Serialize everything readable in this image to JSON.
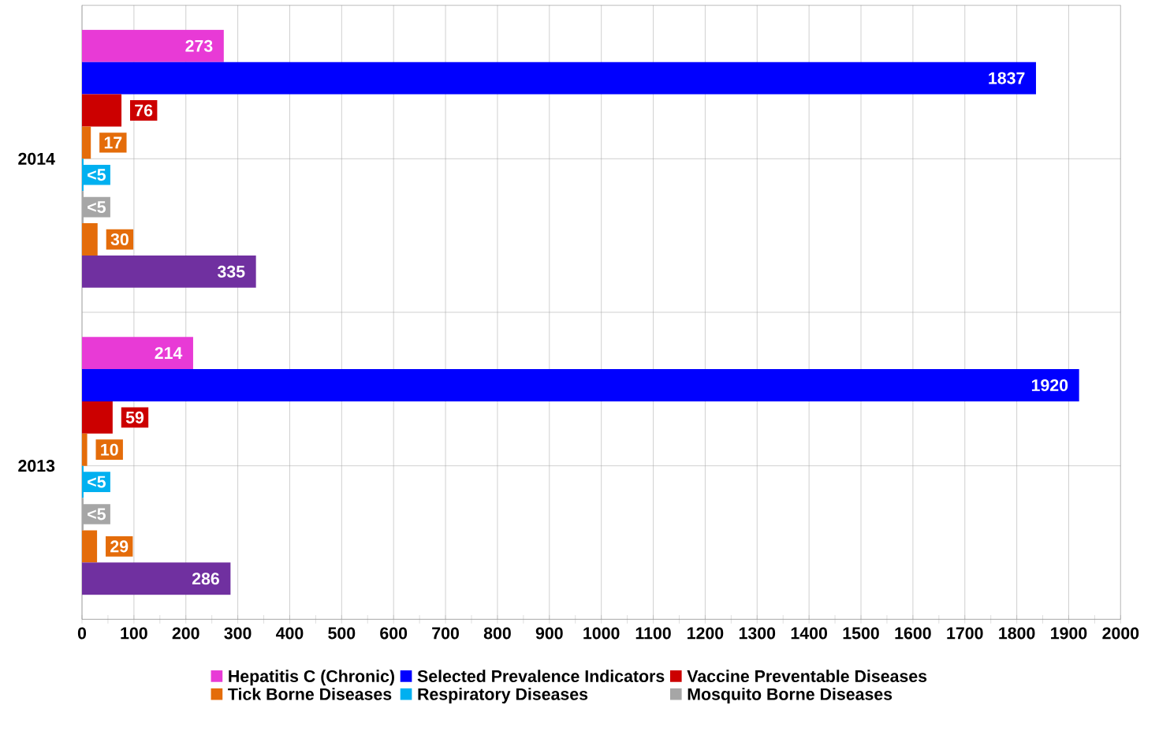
{
  "chart_data": {
    "type": "bar",
    "orientation": "horizontal",
    "categories": [
      "2014",
      "2013"
    ],
    "series": [
      {
        "name": "Hepatitis C (Chronic)",
        "color": "#e83ad6",
        "values": [
          273,
          214
        ],
        "value_labels": [
          "273",
          "214"
        ]
      },
      {
        "name": "Selected Prevalence Indicators",
        "color": "#0000ff",
        "values": [
          1837,
          1920
        ],
        "value_labels": [
          "1837",
          "1920"
        ]
      },
      {
        "name": "Vaccine Preventable Diseases",
        "color": "#cc0000",
        "values": [
          76,
          59
        ],
        "value_labels": [
          "76",
          "59"
        ]
      },
      {
        "name": "Tick Borne Diseases",
        "color": "#e46c0a",
        "values": [
          17,
          10
        ],
        "value_labels": [
          "17",
          "10"
        ]
      },
      {
        "name": "Respiratory Diseases",
        "color": "#00b0f0",
        "values": [
          3,
          3
        ],
        "value_labels": [
          "<5",
          "<5"
        ]
      },
      {
        "name": "Mosquito Borne Diseases",
        "color": "#a6a6a6",
        "values": [
          3,
          3
        ],
        "value_labels": [
          "<5",
          "<5"
        ]
      },
      {
        "color": "#e46c0a",
        "values": [
          30,
          29
        ],
        "value_labels": [
          "30",
          "29"
        ]
      },
      {
        "color": "#7030a0",
        "values": [
          335,
          286
        ],
        "value_labels": [
          "335",
          "286"
        ]
      }
    ],
    "xlim": [
      0,
      2000
    ],
    "xticks": [
      0,
      100,
      200,
      300,
      400,
      500,
      600,
      700,
      800,
      900,
      1000,
      1100,
      1200,
      1300,
      1400,
      1500,
      1600,
      1700,
      1800,
      1900,
      2000
    ],
    "grid": true,
    "legend": "bottom"
  }
}
